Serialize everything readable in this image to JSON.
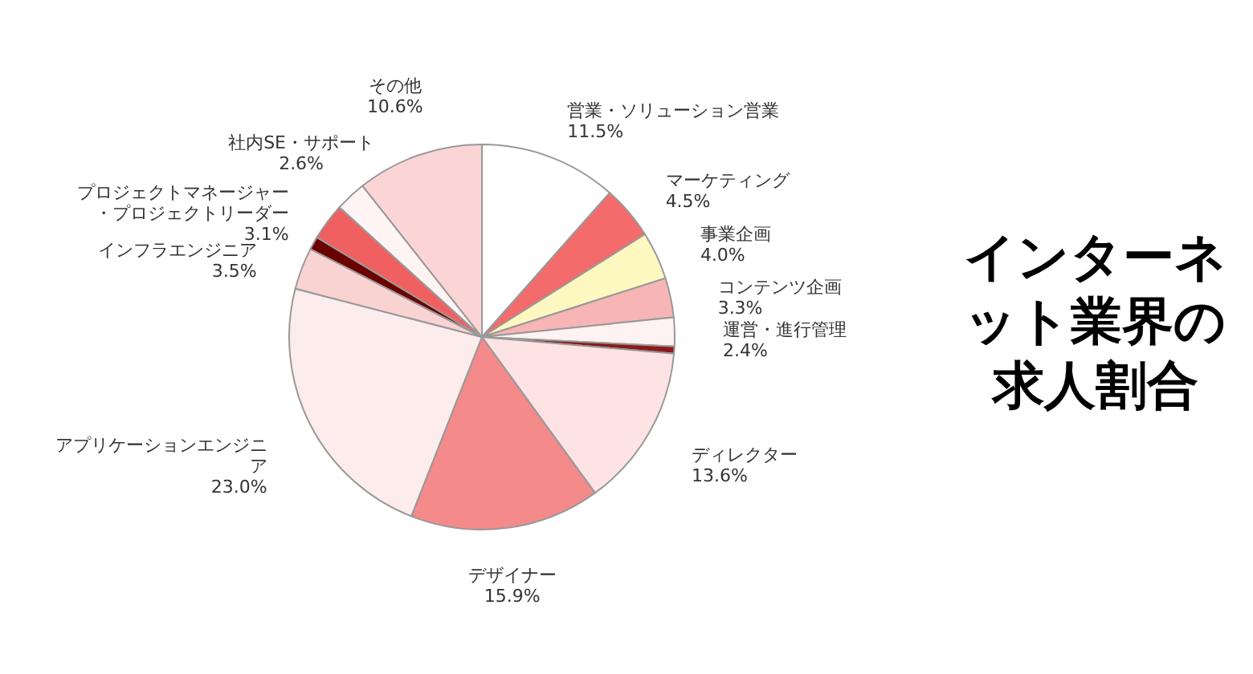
{
  "chart_data": {
    "type": "pie",
    "title": "インターネット業界の求人割合",
    "categories": [
      "営業・ソリューション営業",
      "マーケティング",
      "事業企画",
      "コンテンツ企画",
      "運営・進行管理",
      null,
      "ディレクター",
      "デザイナー",
      "アプリケーションエンジニア",
      "インフラエンジニア",
      null,
      "プロジェクトマネージャー・プロジェクトリーダー",
      "社内SE・サポート",
      "その他"
    ],
    "values": [
      11.5,
      4.5,
      4.0,
      3.3,
      2.4,
      0.6,
      13.6,
      15.9,
      23.0,
      3.5,
      1.1,
      3.1,
      2.6,
      10.6
    ],
    "value_labels": [
      "11.5%",
      "4.5%",
      "4.0%",
      "3.3%",
      "2.4%",
      null,
      "13.6%",
      "15.9%",
      "23.0%",
      "3.5%",
      null,
      "3.1%",
      "2.6%",
      "10.6%"
    ],
    "colors": [
      "#ffffff",
      "#f46b6b",
      "#fdf8c0",
      "#f7b5b5",
      "#fff2f2",
      "#8b1a1a",
      "#fde3e3",
      "#f48a8a",
      "#fdecec",
      "#f9d2d2",
      "#6b0000",
      "#f06060",
      "#fff4f4",
      "#fbd5d5"
    ]
  }
}
